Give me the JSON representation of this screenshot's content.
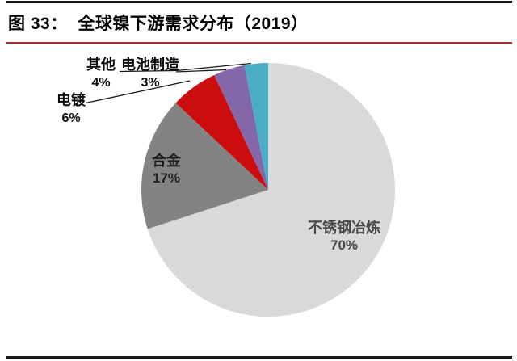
{
  "header": {
    "title": "图 33：  全球镍下游需求分布（2019）",
    "title_rule_color": "#9e2f33"
  },
  "chart_data": {
    "type": "pie",
    "title": "全球镍下游需求分布（2019）",
    "start_angle_deg": 0,
    "direction": "clockwise",
    "legend": "none",
    "value_unit": "%",
    "slices": [
      {
        "key": "stainless-steel-smelting",
        "label": "不锈钢冶炼",
        "value": 70,
        "pct_label": "70%",
        "color": "#D9D9D9"
      },
      {
        "key": "alloy",
        "label": "合金",
        "value": 17,
        "pct_label": "17%",
        "color": "#838383"
      },
      {
        "key": "electroplating",
        "label": "电镀",
        "value": 6,
        "pct_label": "6%",
        "color": "#CC0D0D"
      },
      {
        "key": "other",
        "label": "其他",
        "value": 4,
        "pct_label": "4%",
        "color": "#8467A8"
      },
      {
        "key": "battery-manufacturing",
        "label": "电池制造",
        "value": 3,
        "pct_label": "3%",
        "color": "#4BACC6"
      }
    ]
  }
}
